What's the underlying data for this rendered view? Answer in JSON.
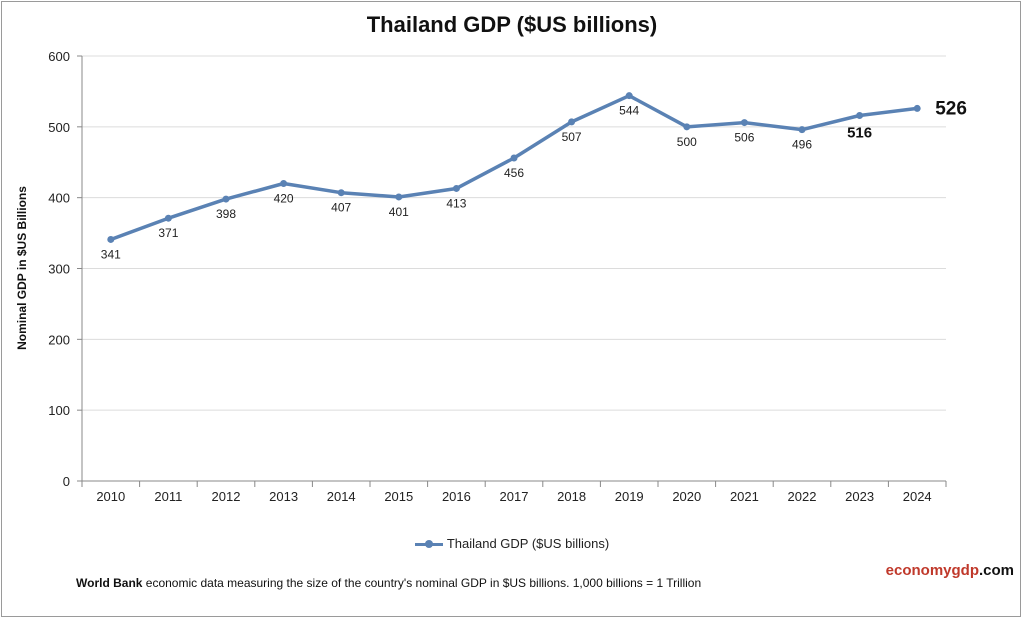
{
  "chart_data": {
    "type": "line",
    "title": "Thailand GDP ($US billions)",
    "ylabel": "Nominal GDP in $US Billions",
    "xlabel": "",
    "ylim": [
      0,
      600
    ],
    "yticks": [
      "0",
      "100",
      "200",
      "300",
      "400",
      "500",
      "600"
    ],
    "categories": [
      "2010",
      "2011",
      "2012",
      "2013",
      "2014",
      "2015",
      "2016",
      "2017",
      "2018",
      "2019",
      "2020",
      "2021",
      "2022",
      "2023",
      "2024"
    ],
    "series": [
      {
        "name": "Thailand GDP ($US billions)",
        "color": "#5a82b4",
        "values": [
          341,
          371,
          398,
          420,
          407,
          401,
          413,
          456,
          507,
          544,
          500,
          506,
          496,
          516,
          526
        ],
        "labels": [
          "341",
          "371",
          "398",
          "420",
          "407",
          "401",
          "413",
          "456",
          "507",
          "544",
          "500",
          "506",
          "496",
          "516",
          "526"
        ]
      }
    ],
    "grid": true,
    "legend": "bottom"
  },
  "footer": {
    "source_bold": "World Bank",
    "source_text": " economic data  measuring the size of the country's nominal GDP in $US billions. 1,000 billions = 1 Trillion"
  },
  "brand": {
    "part1": "economygdp",
    "part2": ".com"
  }
}
